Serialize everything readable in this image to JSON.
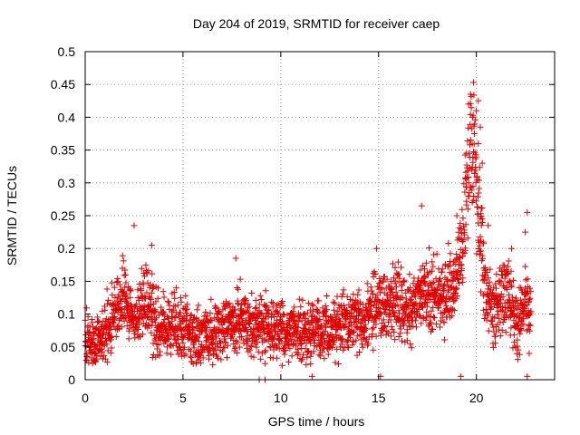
{
  "chart_data": {
    "type": "scatter",
    "title": "Day 204 of 2019, SRMTID for receiver caep",
    "xlabel": "GPS time / hours",
    "ylabel": "SRMTID / TECUs",
    "xlim": [
      0,
      24
    ],
    "ylim": [
      0,
      0.5
    ],
    "x_ticks": [
      0,
      5,
      10,
      15,
      20
    ],
    "x_tick_labels": [
      "0",
      "5",
      "10",
      "15",
      "20"
    ],
    "y_ticks": [
      0,
      0.05,
      0.1,
      0.15,
      0.2,
      0.25,
      0.3,
      0.35,
      0.4,
      0.45,
      0.5
    ],
    "y_tick_labels": [
      "0",
      "0.05",
      "0.1",
      "0.15",
      "0.2",
      "0.25",
      "0.3",
      "0.35",
      "0.4",
      "0.45",
      "0.5"
    ],
    "grid": true,
    "marker": "plus",
    "color": "#e00000",
    "profile": [
      {
        "x": 0.0,
        "y": 0.06
      },
      {
        "x": 0.3,
        "y": 0.055
      },
      {
        "x": 0.6,
        "y": 0.05
      },
      {
        "x": 1.0,
        "y": 0.075
      },
      {
        "x": 1.5,
        "y": 0.1
      },
      {
        "x": 2.0,
        "y": 0.13
      },
      {
        "x": 2.4,
        "y": 0.095
      },
      {
        "x": 2.8,
        "y": 0.1
      },
      {
        "x": 3.2,
        "y": 0.13
      },
      {
        "x": 3.6,
        "y": 0.08
      },
      {
        "x": 4.5,
        "y": 0.08
      },
      {
        "x": 5.5,
        "y": 0.07
      },
      {
        "x": 6.5,
        "y": 0.065
      },
      {
        "x": 7.5,
        "y": 0.09
      },
      {
        "x": 8.5,
        "y": 0.08
      },
      {
        "x": 9.5,
        "y": 0.08
      },
      {
        "x": 10.5,
        "y": 0.07
      },
      {
        "x": 11.5,
        "y": 0.075
      },
      {
        "x": 12.5,
        "y": 0.075
      },
      {
        "x": 13.3,
        "y": 0.09
      },
      {
        "x": 14.0,
        "y": 0.085
      },
      {
        "x": 14.6,
        "y": 0.1
      },
      {
        "x": 15.0,
        "y": 0.12
      },
      {
        "x": 15.5,
        "y": 0.12
      },
      {
        "x": 16.0,
        "y": 0.12
      },
      {
        "x": 16.5,
        "y": 0.105
      },
      {
        "x": 17.0,
        "y": 0.12
      },
      {
        "x": 17.5,
        "y": 0.13
      },
      {
        "x": 18.0,
        "y": 0.13
      },
      {
        "x": 18.5,
        "y": 0.13
      },
      {
        "x": 19.0,
        "y": 0.16
      },
      {
        "x": 19.4,
        "y": 0.24
      },
      {
        "x": 19.7,
        "y": 0.35
      },
      {
        "x": 19.9,
        "y": 0.36
      },
      {
        "x": 20.1,
        "y": 0.26
      },
      {
        "x": 20.4,
        "y": 0.16
      },
      {
        "x": 20.8,
        "y": 0.1
      },
      {
        "x": 21.2,
        "y": 0.12
      },
      {
        "x": 21.6,
        "y": 0.15
      },
      {
        "x": 22.0,
        "y": 0.08
      },
      {
        "x": 22.5,
        "y": 0.12
      },
      {
        "x": 22.8,
        "y": 0.11
      }
    ],
    "points_per_hour": 110,
    "highlights": [
      {
        "x": 2.5,
        "y": 0.235
      },
      {
        "x": 3.4,
        "y": 0.205
      },
      {
        "x": 7.7,
        "y": 0.185
      },
      {
        "x": 14.9,
        "y": 0.2
      },
      {
        "x": 17.2,
        "y": 0.265
      },
      {
        "x": 19.0,
        "y": 0.25
      },
      {
        "x": 19.85,
        "y": 0.453
      },
      {
        "x": 19.7,
        "y": 0.435
      },
      {
        "x": 20.1,
        "y": 0.425
      },
      {
        "x": 19.6,
        "y": 0.42
      },
      {
        "x": 20.0,
        "y": 0.41
      },
      {
        "x": 19.8,
        "y": 0.4
      },
      {
        "x": 20.2,
        "y": 0.385
      },
      {
        "x": 19.9,
        "y": 0.375
      },
      {
        "x": 20.1,
        "y": 0.36
      },
      {
        "x": 19.5,
        "y": 0.345
      },
      {
        "x": 20.3,
        "y": 0.33
      },
      {
        "x": 20.6,
        "y": 0.235
      },
      {
        "x": 22.6,
        "y": 0.255
      },
      {
        "x": 22.5,
        "y": 0.225
      },
      {
        "x": 21.8,
        "y": 0.2
      },
      {
        "x": 11.6,
        "y": 0.005
      },
      {
        "x": 15.1,
        "y": 0.005
      },
      {
        "x": 19.2,
        "y": 0.005
      },
      {
        "x": 22.6,
        "y": 0.005
      },
      {
        "x": 8.9,
        "y": 0.0
      },
      {
        "x": 9.2,
        "y": 0.0
      },
      {
        "x": 22.7,
        "y": 0.04
      }
    ]
  }
}
